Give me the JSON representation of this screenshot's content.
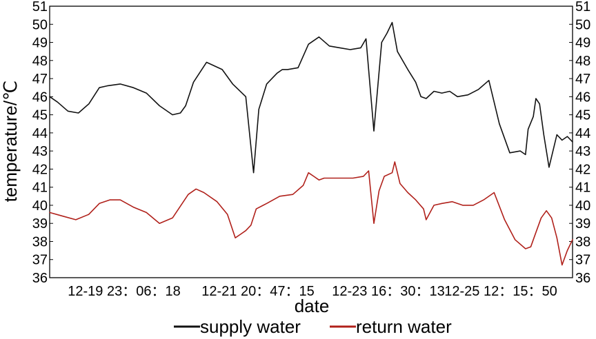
{
  "chart_data": {
    "type": "line",
    "xlabel": "date",
    "ylabel": "temperature/℃",
    "ylim": [
      36,
      51
    ],
    "y_ticks": [
      "36",
      "37",
      "38",
      "39",
      "40",
      "41",
      "42",
      "43",
      "44",
      "45",
      "46",
      "47",
      "48",
      "49",
      "50",
      "51"
    ],
    "x_tick_labels": [
      "12-19 23：06：18",
      "12-21 20：47：15",
      "12-23 16：30：13",
      "12-25 12：15：50"
    ],
    "grid": false,
    "legend_position": "bottom",
    "colors": {
      "supply": "#111111",
      "return": "#b0201a"
    },
    "series": [
      {
        "name": "supply water",
        "x": [
          0,
          1.5,
          3.5,
          5.5,
          7.5,
          9.5,
          11,
          13.5,
          16,
          18.5,
          21,
          23.5,
          25,
          26,
          27.5,
          30,
          33,
          35,
          37.5,
          39,
          40,
          41.5,
          42.5,
          43.5,
          44.5,
          45.5,
          47.5,
          49.5,
          51.5,
          53.5,
          55.5,
          57.5,
          59.5,
          60.5,
          62,
          63.5,
          64.5,
          65.5,
          66.5,
          68.5,
          70,
          71,
          72,
          73.5,
          75,
          76.5,
          78,
          80,
          82,
          84,
          86,
          88,
          90,
          91,
          91.5,
          92.5,
          93,
          93.7,
          94.5,
          95.5,
          97,
          98,
          99,
          100
        ],
        "y": [
          46,
          45.7,
          45.2,
          45.1,
          45.6,
          46.5,
          46.6,
          46.7,
          46.5,
          46.2,
          45.5,
          45,
          45.1,
          45.5,
          46.8,
          47.9,
          47.5,
          46.7,
          46,
          41.8,
          45.3,
          46.7,
          47,
          47.3,
          47.5,
          47.5,
          47.6,
          48.9,
          49.3,
          48.8,
          48.7,
          48.6,
          48.7,
          49.2,
          44.1,
          49,
          49.5,
          50.1,
          48.5,
          47.5,
          46.8,
          46,
          45.9,
          46.3,
          46.2,
          46.3,
          46,
          46.1,
          46.4,
          46.9,
          44.5,
          42.9,
          43,
          42.8,
          44.2,
          44.9,
          45.9,
          45.6,
          43.9,
          42.1,
          43.9,
          43.6,
          43.8,
          43.5
        ]
      },
      {
        "name": "return water",
        "x": [
          0,
          2.5,
          5,
          7.5,
          9.5,
          11.5,
          13.5,
          16,
          18.5,
          21,
          23.5,
          26.5,
          28,
          29.5,
          32,
          34,
          35.5,
          36.5,
          37.5,
          38.5,
          39.5,
          41.5,
          44,
          46.5,
          48.5,
          49.5,
          50.5,
          51.5,
          52.5,
          55,
          58,
          60,
          61,
          62,
          63,
          64,
          65.5,
          66,
          67,
          68.5,
          70,
          71.5,
          72,
          73.5,
          75,
          77,
          79,
          81,
          83,
          85,
          87,
          89,
          91,
          92,
          93,
          94,
          95,
          96,
          97,
          98,
          99,
          100
        ],
        "y": [
          39.6,
          39.4,
          39.2,
          39.5,
          40.1,
          40.3,
          40.3,
          39.9,
          39.6,
          39,
          39.3,
          40.6,
          40.9,
          40.7,
          40.2,
          39.5,
          38.2,
          38.4,
          38.6,
          38.9,
          39.8,
          40.1,
          40.5,
          40.6,
          41.1,
          41.8,
          41.6,
          41.4,
          41.5,
          41.5,
          41.5,
          41.6,
          41.9,
          39,
          40.8,
          41.6,
          41.8,
          42.4,
          41.2,
          40.7,
          40.3,
          39.8,
          39.2,
          40,
          40.1,
          40.2,
          40,
          40,
          40.3,
          40.7,
          39.2,
          38.1,
          37.6,
          37.7,
          38.5,
          39.3,
          39.7,
          39.3,
          38.2,
          36.7,
          37.5,
          38.1
        ]
      }
    ]
  }
}
